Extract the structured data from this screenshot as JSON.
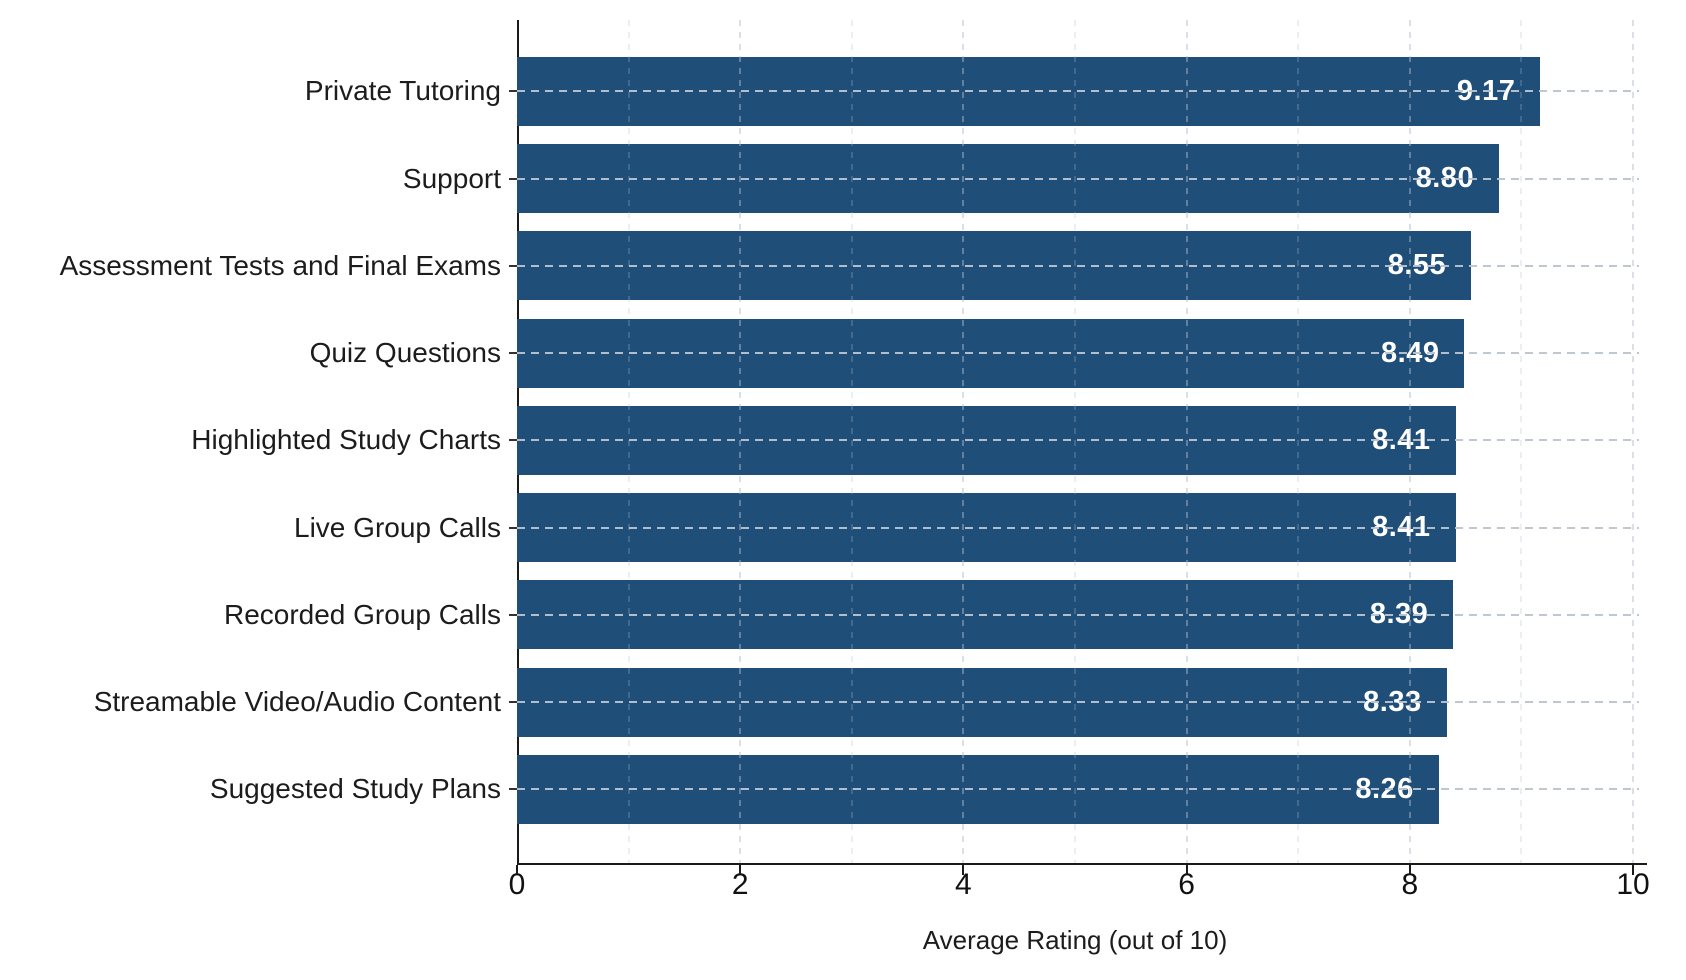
{
  "chart_data": {
    "type": "bar",
    "orientation": "horizontal",
    "title": "",
    "xlabel": "Average Rating (out of 10)",
    "ylabel": "",
    "categories": [
      "Private Tutoring",
      "Support",
      "Assessment Tests and Final Exams",
      "Quiz Questions",
      "Highlighted Study Charts",
      "Live Group Calls",
      "Recorded Group Calls",
      "Streamable Video/Audio Content",
      "Suggested Study Plans"
    ],
    "values": [
      9.17,
      8.8,
      8.55,
      8.49,
      8.41,
      8.41,
      8.39,
      8.33,
      8.26
    ],
    "value_labels": [
      "9.17",
      "8.80",
      "8.55",
      "8.49",
      "8.41",
      "8.41",
      "8.39",
      "8.33",
      "8.26"
    ],
    "xlim": [
      0,
      10
    ],
    "xticks": [
      0,
      2,
      4,
      6,
      8,
      10
    ],
    "xtick_labels": [
      "0",
      "2",
      "4",
      "6",
      "8",
      "10"
    ],
    "grid": {
      "vertical_minor_every": 1,
      "horizontal_per_category": true,
      "style": "dashed"
    },
    "legend": null,
    "colors": {
      "bar": "#1f4e79",
      "value_label": "#ffffff",
      "axis": "#1a1a1a",
      "gridline": "#bac4d0",
      "text": "#1c1c1c"
    }
  }
}
